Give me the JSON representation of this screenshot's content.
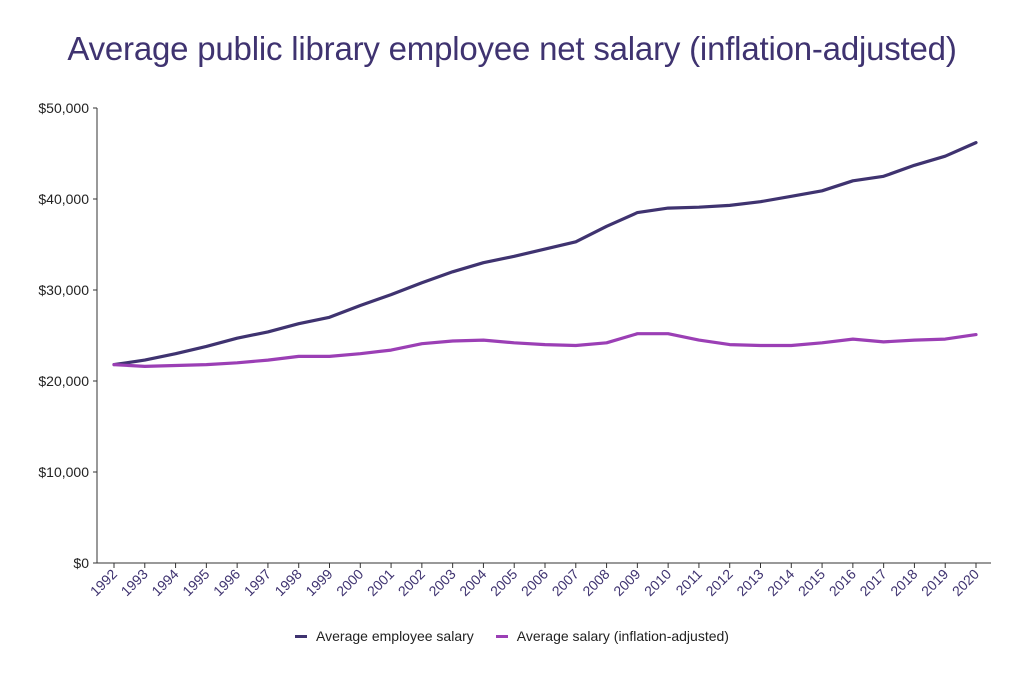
{
  "chart_data": {
    "type": "line",
    "title": "Average public library employee net salary (inflation-adjusted)",
    "xlabel": "",
    "ylabel": "",
    "ylim": [
      0,
      50000
    ],
    "yticks": [
      {
        "value": 0,
        "label": "$0"
      },
      {
        "value": 10000,
        "label": "$10,000"
      },
      {
        "value": 20000,
        "label": "$20,000"
      },
      {
        "value": 30000,
        "label": "$30,000"
      },
      {
        "value": 40000,
        "label": "$40,000"
      },
      {
        "value": 50000,
        "label": "$50,000"
      }
    ],
    "x": [
      "1992",
      "1993",
      "1994",
      "1995",
      "1996",
      "1997",
      "1998",
      "1999",
      "2000",
      "2001",
      "2002",
      "2003",
      "2004",
      "2005",
      "2006",
      "2007",
      "2008",
      "2009",
      "2010",
      "2011",
      "2012",
      "2013",
      "2014",
      "2015",
      "2016",
      "2017",
      "2018",
      "2019",
      "2020"
    ],
    "grid": false,
    "legend_position": "bottom",
    "series": [
      {
        "name": "Average employee salary",
        "color": "#3f3370",
        "values": [
          21800,
          22300,
          23000,
          23800,
          24700,
          25400,
          26300,
          27000,
          28300,
          29500,
          30800,
          32000,
          33000,
          33700,
          34500,
          35300,
          37000,
          38500,
          39000,
          39100,
          39300,
          39700,
          40300,
          40900,
          42000,
          42500,
          43700,
          44700,
          46200
        ]
      },
      {
        "name": "Average salary (inflation-adjusted)",
        "color": "#9b3fb5",
        "values": [
          21800,
          21600,
          21700,
          21800,
          22000,
          22300,
          22700,
          22700,
          23000,
          23400,
          24100,
          24400,
          24500,
          24200,
          24000,
          23900,
          24200,
          25200,
          25200,
          24500,
          24000,
          23900,
          23900,
          24200,
          24600,
          24300,
          24500,
          24600,
          25100
        ]
      }
    ]
  }
}
